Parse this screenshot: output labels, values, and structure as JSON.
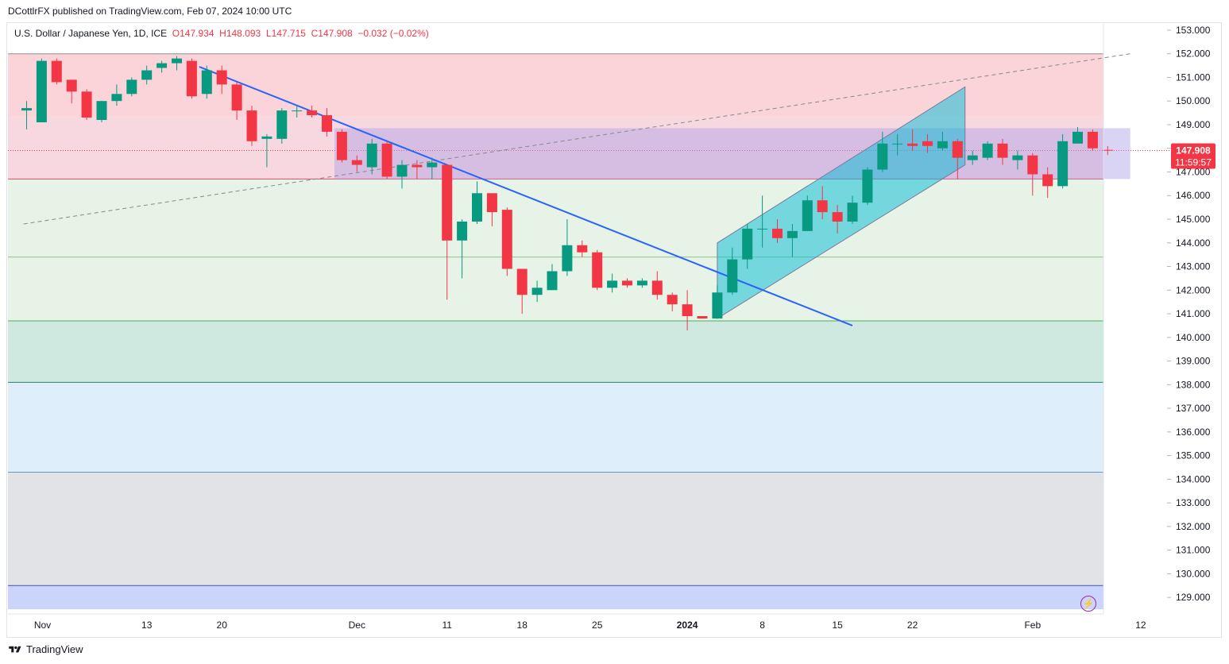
{
  "header": {
    "publisher_line": "DCottlrFX published on TradingView.com, Feb 07, 2024 10:00 UTC"
  },
  "legend": {
    "symbol": "U.S. Dollar / Japanese Yen, 1D, ICE",
    "open": "O147.934",
    "high": "H148.093",
    "low": "L147.715",
    "close": "C147.908",
    "change": "−0.032 (−0.02%)"
  },
  "price_tag": {
    "price": "147.908",
    "countdown": "11:59:57",
    "color": "#f23645"
  },
  "footer": {
    "brand": "TradingView"
  },
  "colors": {
    "up": "#089981",
    "down": "#f23645",
    "trendline": "#2962ff",
    "channel": "#00bcd4"
  },
  "chart_data": {
    "type": "candlestick",
    "y_axis": {
      "range": [
        128.3,
        153.3
      ],
      "ticks": [
        "153.000",
        "152.000",
        "151.000",
        "150.000",
        "149.000",
        "148.000",
        "147.000",
        "146.000",
        "145.000",
        "144.000",
        "143.000",
        "142.000",
        "141.000",
        "140.000",
        "139.000",
        "138.000",
        "137.000",
        "136.000",
        "135.000",
        "134.000",
        "133.000",
        "132.000",
        "131.000",
        "130.000",
        "129.000"
      ]
    },
    "x_axis": {
      "labels": [
        {
          "text": "Nov",
          "i": 0
        },
        {
          "text": "13",
          "i": 8
        },
        {
          "text": "20",
          "i": 13
        },
        {
          "text": "Dec",
          "i": 22
        },
        {
          "text": "11",
          "i": 28
        },
        {
          "text": "18",
          "i": 33
        },
        {
          "text": "25",
          "i": 38
        },
        {
          "text": "2024",
          "i": 44
        },
        {
          "text": "8",
          "i": 49
        },
        {
          "text": "15",
          "i": 54
        },
        {
          "text": "22",
          "i": 59
        },
        {
          "text": "Feb",
          "i": 67
        },
        {
          "text": "12",
          "i": 74.2
        }
      ]
    },
    "zones": [
      {
        "from": 149.35,
        "to": 152.0,
        "color": "#fad4d8"
      },
      {
        "from": 146.7,
        "to": 149.35,
        "color": "#f8d8e0"
      },
      {
        "from": 140.7,
        "to": 146.7,
        "color": "#e6f3e6"
      },
      {
        "from": 138.1,
        "to": 140.7,
        "color": "#cfe9e1"
      },
      {
        "from": 134.3,
        "to": 138.1,
        "color": "#deeefb"
      },
      {
        "from": 129.5,
        "to": 134.3,
        "color": "#e2e3e6"
      },
      {
        "from": 128.5,
        "to": 129.5,
        "color": "#cbd5fb"
      }
    ],
    "level_lines": [
      {
        "price": 152.0,
        "color": "#8e8e8e"
      },
      {
        "price": 146.7,
        "color": "#d34e63"
      },
      {
        "price": 143.4,
        "color": "#8bc48b"
      },
      {
        "price": 140.7,
        "color": "#4caf50"
      },
      {
        "price": 138.1,
        "color": "#2e7d6f"
      },
      {
        "price": 134.3,
        "color": "#5b9bd5"
      },
      {
        "price": 129.5,
        "color": "#3f51b5"
      }
    ],
    "consolidation_box": {
      "i_from": 20.5,
      "i_to": 73.5,
      "top": 148.85,
      "bottom": 146.7,
      "color": "rgba(173,160,230,0.45)"
    },
    "trendline": {
      "i1": 11.5,
      "p1": 151.45,
      "i2": 55.0,
      "p2": 140.5
    },
    "dashed_line": {
      "i1": -0.2,
      "p1": 144.8,
      "i2": 73.5,
      "p2": 152.0
    },
    "channel": {
      "i_from": 46,
      "i_to": 62.5,
      "upper_start": 144.0,
      "upper_end": 150.6,
      "lower_start": 140.8,
      "lower_end": 147.3
    },
    "current_price": 147.908,
    "candles": [
      {
        "o": 149.6,
        "h": 150.0,
        "l": 148.8,
        "c": 149.7
      },
      {
        "o": 149.1,
        "h": 151.8,
        "l": 149.1,
        "c": 151.7
      },
      {
        "o": 151.7,
        "h": 151.8,
        "l": 150.7,
        "c": 150.8
      },
      {
        "o": 150.9,
        "h": 150.9,
        "l": 149.9,
        "c": 150.4
      },
      {
        "o": 150.4,
        "h": 150.5,
        "l": 149.2,
        "c": 149.3
      },
      {
        "o": 149.2,
        "h": 150.0,
        "l": 149.1,
        "c": 150.0
      },
      {
        "o": 150.0,
        "h": 150.7,
        "l": 149.8,
        "c": 150.3
      },
      {
        "o": 150.3,
        "h": 151.0,
        "l": 150.2,
        "c": 150.9
      },
      {
        "o": 150.9,
        "h": 151.5,
        "l": 150.7,
        "c": 151.3
      },
      {
        "o": 151.4,
        "h": 151.7,
        "l": 151.2,
        "c": 151.6
      },
      {
        "o": 151.6,
        "h": 151.9,
        "l": 151.3,
        "c": 151.8
      },
      {
        "o": 151.7,
        "h": 151.8,
        "l": 150.1,
        "c": 150.2
      },
      {
        "o": 150.3,
        "h": 151.5,
        "l": 150.1,
        "c": 151.3
      },
      {
        "o": 151.3,
        "h": 151.5,
        "l": 150.3,
        "c": 150.7
      },
      {
        "o": 150.7,
        "h": 150.8,
        "l": 149.2,
        "c": 149.6
      },
      {
        "o": 149.6,
        "h": 149.8,
        "l": 148.1,
        "c": 148.3
      },
      {
        "o": 148.4,
        "h": 148.6,
        "l": 147.2,
        "c": 148.5
      },
      {
        "o": 148.4,
        "h": 149.7,
        "l": 148.2,
        "c": 149.6
      },
      {
        "o": 149.6,
        "h": 149.8,
        "l": 149.3,
        "c": 149.6
      },
      {
        "o": 149.6,
        "h": 149.8,
        "l": 149.3,
        "c": 149.4
      },
      {
        "o": 149.4,
        "h": 149.7,
        "l": 148.5,
        "c": 148.7
      },
      {
        "o": 148.7,
        "h": 148.8,
        "l": 147.4,
        "c": 147.5
      },
      {
        "o": 147.5,
        "h": 147.7,
        "l": 147.0,
        "c": 147.3
      },
      {
        "o": 147.2,
        "h": 148.4,
        "l": 146.9,
        "c": 148.2
      },
      {
        "o": 148.2,
        "h": 148.3,
        "l": 146.7,
        "c": 146.8
      },
      {
        "o": 146.8,
        "h": 147.5,
        "l": 146.3,
        "c": 147.3
      },
      {
        "o": 147.3,
        "h": 147.5,
        "l": 146.7,
        "c": 147.2
      },
      {
        "o": 147.2,
        "h": 147.6,
        "l": 146.7,
        "c": 147.4
      },
      {
        "o": 147.3,
        "h": 147.3,
        "l": 141.6,
        "c": 144.1
      },
      {
        "o": 144.1,
        "h": 145.0,
        "l": 142.5,
        "c": 144.9
      },
      {
        "o": 144.9,
        "h": 146.6,
        "l": 144.8,
        "c": 146.1
      },
      {
        "o": 146.1,
        "h": 146.1,
        "l": 144.7,
        "c": 145.3
      },
      {
        "o": 145.4,
        "h": 145.5,
        "l": 142.6,
        "c": 142.9
      },
      {
        "o": 142.9,
        "h": 142.9,
        "l": 141.0,
        "c": 141.8
      },
      {
        "o": 141.8,
        "h": 142.4,
        "l": 141.5,
        "c": 142.1
      },
      {
        "o": 142.0,
        "h": 143.1,
        "l": 142.0,
        "c": 142.8
      },
      {
        "o": 142.8,
        "h": 145.0,
        "l": 142.6,
        "c": 143.9
      },
      {
        "o": 143.9,
        "h": 144.1,
        "l": 143.4,
        "c": 143.6
      },
      {
        "o": 143.6,
        "h": 143.7,
        "l": 142.0,
        "c": 142.1
      },
      {
        "o": 142.1,
        "h": 142.7,
        "l": 141.9,
        "c": 142.4
      },
      {
        "o": 142.4,
        "h": 142.5,
        "l": 142.1,
        "c": 142.2
      },
      {
        "o": 142.2,
        "h": 142.5,
        "l": 142.1,
        "c": 142.4
      },
      {
        "o": 142.4,
        "h": 142.8,
        "l": 141.6,
        "c": 141.8
      },
      {
        "o": 141.8,
        "h": 141.9,
        "l": 141.1,
        "c": 141.4
      },
      {
        "o": 141.4,
        "h": 142.0,
        "l": 140.3,
        "c": 140.9
      },
      {
        "o": 140.9,
        "h": 140.9,
        "l": 140.8,
        "c": 140.8
      },
      {
        "o": 140.8,
        "h": 142.2,
        "l": 140.8,
        "c": 141.9
      },
      {
        "o": 141.9,
        "h": 143.8,
        "l": 141.8,
        "c": 143.3
      },
      {
        "o": 143.3,
        "h": 144.8,
        "l": 142.9,
        "c": 144.6
      },
      {
        "o": 144.6,
        "h": 146.0,
        "l": 143.8,
        "c": 144.6
      },
      {
        "o": 144.6,
        "h": 145.0,
        "l": 144.0,
        "c": 144.2
      },
      {
        "o": 144.2,
        "h": 144.8,
        "l": 143.4,
        "c": 144.5
      },
      {
        "o": 144.5,
        "h": 146.0,
        "l": 144.5,
        "c": 145.8
      },
      {
        "o": 145.8,
        "h": 146.4,
        "l": 145.0,
        "c": 145.3
      },
      {
        "o": 145.3,
        "h": 145.6,
        "l": 144.4,
        "c": 144.9
      },
      {
        "o": 144.9,
        "h": 146.0,
        "l": 144.8,
        "c": 145.7
      },
      {
        "o": 145.7,
        "h": 147.2,
        "l": 145.6,
        "c": 147.1
      },
      {
        "o": 147.1,
        "h": 148.7,
        "l": 147.0,
        "c": 148.2
      },
      {
        "o": 148.2,
        "h": 148.6,
        "l": 147.7,
        "c": 148.2
      },
      {
        "o": 148.2,
        "h": 148.8,
        "l": 147.9,
        "c": 148.1
      },
      {
        "o": 148.3,
        "h": 148.6,
        "l": 147.8,
        "c": 148.1
      },
      {
        "o": 148.0,
        "h": 148.7,
        "l": 147.9,
        "c": 148.3
      },
      {
        "o": 148.3,
        "h": 148.4,
        "l": 146.7,
        "c": 147.6
      },
      {
        "o": 147.5,
        "h": 147.9,
        "l": 147.3,
        "c": 147.7
      },
      {
        "o": 147.6,
        "h": 148.3,
        "l": 147.5,
        "c": 148.2
      },
      {
        "o": 148.2,
        "h": 148.4,
        "l": 147.3,
        "c": 147.6
      },
      {
        "o": 147.5,
        "h": 147.9,
        "l": 147.1,
        "c": 147.7
      },
      {
        "o": 147.7,
        "h": 147.8,
        "l": 146.0,
        "c": 146.9
      },
      {
        "o": 146.9,
        "h": 147.2,
        "l": 145.9,
        "c": 146.4
      },
      {
        "o": 146.4,
        "h": 148.6,
        "l": 146.3,
        "c": 148.3
      },
      {
        "o": 148.2,
        "h": 148.9,
        "l": 148.2,
        "c": 148.7
      },
      {
        "o": 148.7,
        "h": 148.8,
        "l": 147.9,
        "c": 148.0
      },
      {
        "o": 147.934,
        "h": 148.093,
        "l": 147.715,
        "c": 147.908
      }
    ]
  }
}
